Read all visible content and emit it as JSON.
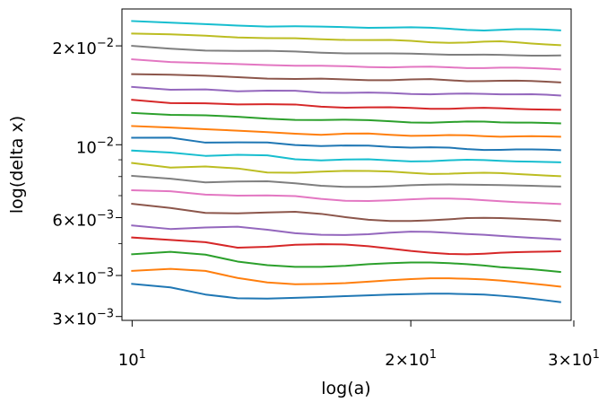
{
  "chart_data": {
    "type": "line",
    "title": "",
    "xlabel": "log(a)",
    "ylabel": "log(delta x)",
    "x_scale": "log",
    "y_scale": "log",
    "xlim": [
      9.75,
      29.8
    ],
    "ylim": [
      0.00292,
      0.0259
    ],
    "grid": false,
    "legend": "none",
    "x_ticks": [
      {
        "value": 10,
        "mantissa": "",
        "base": "10",
        "exp": "1"
      },
      {
        "value": 20,
        "mantissa": "2",
        "base": "10",
        "exp": "1"
      },
      {
        "value": 30,
        "mantissa": "3",
        "base": "10",
        "exp": "1"
      }
    ],
    "y_ticks": [
      {
        "value": 0.003,
        "mantissa": "3",
        "base": "10",
        "exp": "−3"
      },
      {
        "value": 0.004,
        "mantissa": "4",
        "base": "10",
        "exp": "−3"
      },
      {
        "value": 0.006,
        "mantissa": "6",
        "base": "10",
        "exp": "−3"
      },
      {
        "value": 0.01,
        "mantissa": "",
        "base": "10",
        "exp": "−2"
      },
      {
        "value": 0.02,
        "mantissa": "2",
        "base": "10",
        "exp": "−2"
      }
    ],
    "x": [
      10,
      11,
      12,
      13,
      14,
      15,
      16,
      17,
      18,
      19,
      20,
      21,
      22,
      23,
      24,
      25,
      26,
      27,
      28,
      29
    ],
    "series": [
      {
        "color": "#1f77b4",
        "values": [
          0.00377,
          0.00368,
          0.0035,
          0.00341,
          0.0034,
          0.00342,
          0.00344,
          0.00346,
          0.00348,
          0.0035,
          0.00351,
          0.00352,
          0.00352,
          0.00351,
          0.0035,
          0.00347,
          0.00344,
          0.0034,
          0.00336,
          0.00332
        ]
      },
      {
        "color": "#ff7f0e",
        "values": [
          0.00413,
          0.00419,
          0.00413,
          0.00393,
          0.00381,
          0.00376,
          0.00377,
          0.00379,
          0.00383,
          0.00387,
          0.0039,
          0.00392,
          0.00392,
          0.00391,
          0.00389,
          0.00386,
          0.00382,
          0.00378,
          0.00374,
          0.0037
        ]
      },
      {
        "color": "#2ca02c",
        "values": [
          0.00464,
          0.00472,
          0.00463,
          0.00441,
          0.0043,
          0.00425,
          0.00425,
          0.00428,
          0.00433,
          0.00436,
          0.00438,
          0.00438,
          0.00436,
          0.00433,
          0.00429,
          0.00424,
          0.00421,
          0.00418,
          0.00414,
          0.0041
        ]
      },
      {
        "color": "#d62728",
        "values": [
          0.00522,
          0.00513,
          0.00505,
          0.00486,
          0.00489,
          0.00496,
          0.00498,
          0.00497,
          0.00491,
          0.00483,
          0.00475,
          0.00469,
          0.00465,
          0.00464,
          0.00466,
          0.00469,
          0.00471,
          0.00472,
          0.00473,
          0.00474
        ]
      },
      {
        "color": "#9467bd",
        "values": [
          0.00568,
          0.00554,
          0.0056,
          0.00563,
          0.00551,
          0.00538,
          0.00532,
          0.00531,
          0.00534,
          0.0054,
          0.00544,
          0.00543,
          0.00539,
          0.00535,
          0.00532,
          0.00528,
          0.00524,
          0.00521,
          0.00518,
          0.00515
        ]
      },
      {
        "color": "#8c564b",
        "values": [
          0.00661,
          0.00642,
          0.0062,
          0.00618,
          0.00622,
          0.00625,
          0.00616,
          0.00602,
          0.00591,
          0.00586,
          0.00586,
          0.00589,
          0.00593,
          0.00598,
          0.00599,
          0.00598,
          0.00596,
          0.00593,
          0.0059,
          0.00586
        ]
      },
      {
        "color": "#e377c2",
        "values": [
          0.00727,
          0.00722,
          0.00705,
          0.007,
          0.00701,
          0.00698,
          0.00684,
          0.00675,
          0.00674,
          0.00677,
          0.00682,
          0.00686,
          0.00686,
          0.00683,
          0.00678,
          0.00673,
          0.00669,
          0.00666,
          0.00663,
          0.0066
        ]
      },
      {
        "color": "#7f7f7f",
        "values": [
          0.00804,
          0.00788,
          0.00768,
          0.00773,
          0.00774,
          0.00763,
          0.0075,
          0.00744,
          0.00744,
          0.00748,
          0.00753,
          0.00756,
          0.00757,
          0.00756,
          0.00755,
          0.00754,
          0.00752,
          0.0075,
          0.00748,
          0.00746
        ]
      },
      {
        "color": "#bcbd22",
        "values": [
          0.0088,
          0.00852,
          0.00859,
          0.00847,
          0.00823,
          0.00822,
          0.00828,
          0.00833,
          0.00832,
          0.00829,
          0.00821,
          0.00815,
          0.00816,
          0.0082,
          0.00822,
          0.0082,
          0.00815,
          0.0081,
          0.00806,
          0.00802
        ]
      },
      {
        "color": "#17becf",
        "values": [
          0.0096,
          0.00947,
          0.00925,
          0.00932,
          0.00928,
          0.00903,
          0.00896,
          0.00902,
          0.00903,
          0.00896,
          0.0089,
          0.00891,
          0.00897,
          0.009,
          0.00898,
          0.00893,
          0.0089,
          0.00888,
          0.00886,
          0.00884
        ]
      },
      {
        "color": "#1f77b4",
        "values": [
          0.0105,
          0.01051,
          0.01015,
          0.01017,
          0.01016,
          0.00998,
          0.00991,
          0.00995,
          0.00994,
          0.00985,
          0.0098,
          0.00982,
          0.0098,
          0.0097,
          0.00964,
          0.00965,
          0.00968,
          0.00968,
          0.00966,
          0.00963
        ]
      },
      {
        "color": "#ff7f0e",
        "values": [
          0.0114,
          0.01128,
          0.01115,
          0.01104,
          0.01092,
          0.0108,
          0.01072,
          0.01081,
          0.01082,
          0.01072,
          0.01064,
          0.01066,
          0.0107,
          0.01069,
          0.01062,
          0.01058,
          0.0106,
          0.01062,
          0.0106,
          0.01058
        ]
      },
      {
        "color": "#2ca02c",
        "values": [
          0.0125,
          0.01233,
          0.01229,
          0.01217,
          0.012,
          0.0119,
          0.01189,
          0.01192,
          0.01188,
          0.01179,
          0.01169,
          0.01167,
          0.01172,
          0.01177,
          0.01176,
          0.0117,
          0.01168,
          0.01168,
          0.01165,
          0.01162
        ]
      },
      {
        "color": "#d62728",
        "values": [
          0.0137,
          0.01339,
          0.01337,
          0.01327,
          0.01329,
          0.01326,
          0.01306,
          0.01297,
          0.013,
          0.01301,
          0.01295,
          0.01286,
          0.01286,
          0.01293,
          0.01296,
          0.01292,
          0.01285,
          0.01281,
          0.01279,
          0.01277
        ]
      },
      {
        "color": "#9467bd",
        "values": [
          0.015,
          0.0147,
          0.01474,
          0.01454,
          0.01461,
          0.0146,
          0.01441,
          0.01438,
          0.01442,
          0.01437,
          0.01427,
          0.01424,
          0.01429,
          0.01432,
          0.01428,
          0.01424,
          0.01424,
          0.01425,
          0.0142,
          0.01412
        ]
      },
      {
        "color": "#8c564b",
        "values": [
          0.0164,
          0.01634,
          0.01622,
          0.01606,
          0.0159,
          0.01586,
          0.01589,
          0.01581,
          0.01572,
          0.01572,
          0.01581,
          0.01584,
          0.01572,
          0.01561,
          0.01562,
          0.01566,
          0.01567,
          0.01563,
          0.01556,
          0.01548
        ]
      },
      {
        "color": "#e377c2",
        "values": [
          0.0182,
          0.01786,
          0.01773,
          0.0176,
          0.01748,
          0.0174,
          0.0174,
          0.01734,
          0.01724,
          0.0172,
          0.01726,
          0.01729,
          0.01721,
          0.01711,
          0.01711,
          0.01717,
          0.01717,
          0.01712,
          0.01704,
          0.01696
        ]
      },
      {
        "color": "#7f7f7f",
        "values": [
          0.02,
          0.01961,
          0.01935,
          0.0193,
          0.01932,
          0.01922,
          0.01906,
          0.01897,
          0.01897,
          0.01897,
          0.01894,
          0.01886,
          0.0188,
          0.0188,
          0.01881,
          0.01878,
          0.01872,
          0.01868,
          0.01868,
          0.0187
        ]
      },
      {
        "color": "#bcbd22",
        "values": [
          0.0218,
          0.02168,
          0.02148,
          0.02121,
          0.02111,
          0.0211,
          0.02095,
          0.02084,
          0.02083,
          0.02085,
          0.02071,
          0.02051,
          0.02042,
          0.02047,
          0.0206,
          0.02065,
          0.0205,
          0.02033,
          0.0202,
          0.0201
        ]
      },
      {
        "color": "#17becf",
        "values": [
          0.0238,
          0.02353,
          0.0233,
          0.02306,
          0.0229,
          0.02294,
          0.0229,
          0.02281,
          0.0227,
          0.02274,
          0.02279,
          0.02272,
          0.02255,
          0.02236,
          0.02228,
          0.02238,
          0.02248,
          0.02249,
          0.02242,
          0.0223
        ]
      }
    ]
  }
}
